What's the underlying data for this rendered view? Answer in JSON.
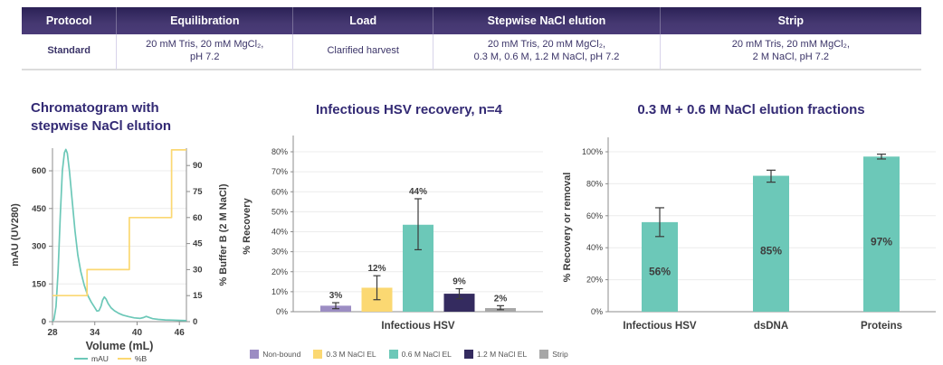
{
  "table": {
    "headers": [
      "Protocol",
      "Equilibration",
      "Load",
      "Stepwise NaCl elution",
      "Strip"
    ],
    "row": [
      "Standard",
      "20 mM Tris, 20 mM MgCl₂,\npH 7.2",
      "Clarified harvest",
      "20 mM Tris, 20 mM MgCl₂,\n0.3 M, 0.6 M, 1.2 M NaCl, pH 7.2",
      "20 mM Tris, 20 mM MgCl₂,\n2 M NaCl, pH 7.2"
    ]
  },
  "colors": {
    "brand": "#332a74",
    "teal": "#6cc8b8",
    "yellow": "#fbd872",
    "purple": "#9c8dc3",
    "navy": "#342b5f",
    "gray": "#a7a7a7",
    "axis": "#8c8c8c",
    "grid": "#ececec",
    "error": "#3a3a3a"
  },
  "chart_data": [
    {
      "id": "chromatogram",
      "type": "line",
      "title": "Chromatogram with\nstepwise NaCl elution",
      "xlabel": "Volume (mL)",
      "ylabel_left": "mAU (UV280)",
      "ylabel_right": "% Buffer B (2 M NaCl)",
      "xlim": [
        28,
        47
      ],
      "xticks": [
        28,
        34,
        40,
        46
      ],
      "ylim_left": [
        0,
        690
      ],
      "yticks_left": [
        0,
        150,
        300,
        450,
        600
      ],
      "ylim_right": [
        0,
        100
      ],
      "yticks_right": [
        0,
        15,
        30,
        45,
        60,
        75,
        90
      ],
      "legend": [
        "mAU",
        "%B"
      ],
      "series": [
        {
          "name": "mAU",
          "color": "teal",
          "axis": "left",
          "x": [
            28.0,
            28.2,
            28.5,
            28.8,
            29.1,
            29.4,
            29.7,
            29.9,
            30.1,
            30.4,
            30.8,
            31.2,
            31.6,
            32.0,
            32.5,
            33.0,
            33.5,
            34.0,
            34.3,
            34.6,
            34.9,
            35.1,
            35.35,
            35.6,
            35.9,
            36.3,
            36.8,
            37.4,
            38.0,
            38.8,
            39.6,
            40.4,
            40.9,
            41.3,
            41.7,
            42.2,
            43.0,
            44.0,
            45.0,
            46.0,
            47.0
          ],
          "y": [
            2,
            8,
            60,
            200,
            420,
            600,
            672,
            685,
            670,
            600,
            480,
            360,
            265,
            200,
            145,
            105,
            78,
            56,
            42,
            44,
            62,
            85,
            98,
            90,
            72,
            55,
            43,
            33,
            26,
            20,
            15,
            13,
            16,
            21,
            17,
            12,
            9,
            7,
            6,
            5,
            4
          ]
        },
        {
          "name": "%B",
          "color": "yellow",
          "axis": "right",
          "x": [
            28,
            32.9,
            32.9,
            38.9,
            38.9,
            44.9,
            44.9,
            47
          ],
          "y": [
            15,
            15,
            30,
            30,
            60,
            60,
            99,
            99
          ]
        }
      ]
    },
    {
      "id": "hsv_recovery",
      "type": "bar",
      "title": "Infectious HSV recovery, n=4",
      "ylabel": "% Recovery",
      "xlabel": "Infectious HSV",
      "ylim": [
        0,
        80
      ],
      "yticks": [
        0,
        10,
        20,
        30,
        40,
        50,
        60,
        70,
        80
      ],
      "series": [
        {
          "name": "Non-bound",
          "color": "purple",
          "value": 3,
          "label": "3%",
          "err_low": 1.5,
          "err_high": 4.5
        },
        {
          "name": "0.3 M NaCl EL",
          "color": "yellow",
          "value": 12,
          "label": "12%",
          "err_low": 6,
          "err_high": 18
        },
        {
          "name": "0.6 M NaCl EL",
          "color": "teal",
          "value": 43.5,
          "label": "44%",
          "err_low": 31,
          "err_high": 56.5
        },
        {
          "name": "1.2 M NaCl EL",
          "color": "navy",
          "value": 9,
          "label": "9%",
          "err_low": 6.5,
          "err_high": 11.5
        },
        {
          "name": "Strip",
          "color": "gray",
          "value": 1.8,
          "label": "2%",
          "err_low": 1,
          "err_high": 3
        }
      ]
    },
    {
      "id": "elution_fractions",
      "type": "bar",
      "title": "0.3 M + 0.6 M NaCl elution fractions",
      "ylabel": "% Recovery or removal",
      "ylim": [
        0,
        100
      ],
      "yticks": [
        0,
        20,
        40,
        60,
        80,
        100
      ],
      "categories": [
        "Infectious HSV",
        "dsDNA",
        "Proteins"
      ],
      "values": [
        56,
        85,
        97
      ],
      "labels": [
        "56%",
        "85%",
        "97%"
      ],
      "err_low": [
        47,
        81,
        95.5
      ],
      "err_high": [
        65,
        88.5,
        98.5
      ],
      "bar_color": "teal"
    }
  ]
}
